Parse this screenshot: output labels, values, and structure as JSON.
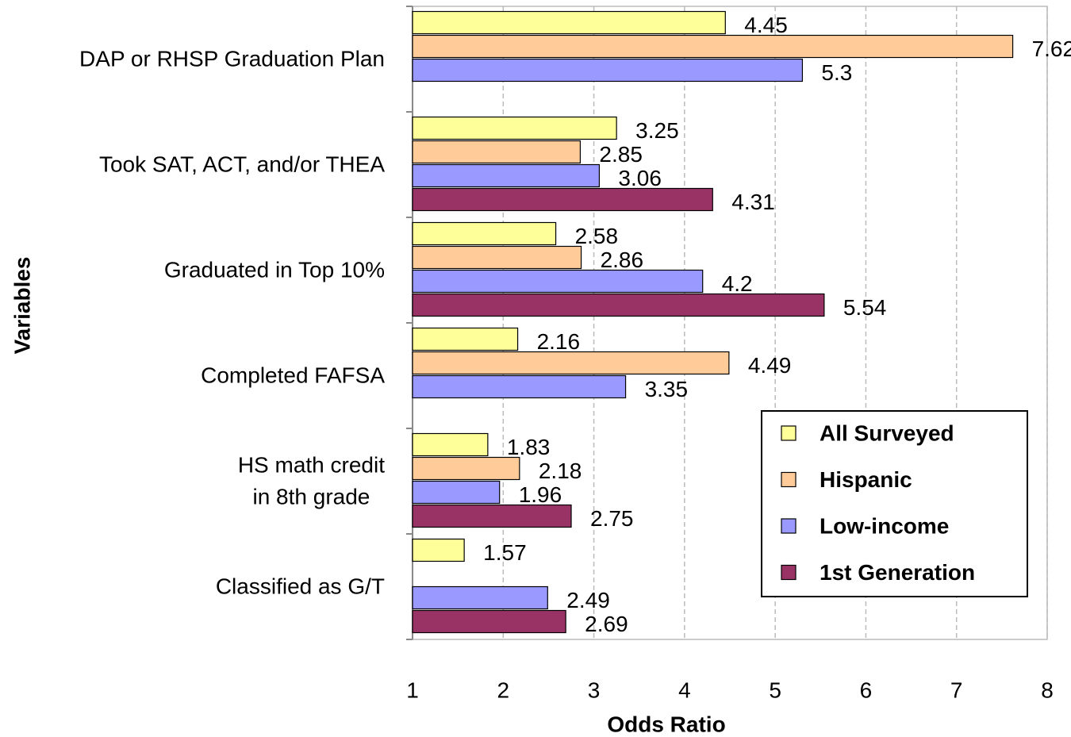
{
  "chart_data": {
    "type": "bar",
    "orientation": "horizontal",
    "xlabel": "Odds Ratio",
    "ylabel": "Variables",
    "categories": [
      "DAP or RHSP Graduation Plan",
      "Took SAT, ACT, and/or THEA",
      "Graduated in Top 10%",
      "Completed FAFSA",
      "HS math credit\nin 8th grade",
      "Classified as G/T"
    ],
    "series": [
      {
        "name": "All Surveyed",
        "color": "#ffff99",
        "values": [
          4.45,
          3.25,
          2.58,
          2.16,
          1.83,
          1.57
        ]
      },
      {
        "name": "Hispanic",
        "color": "#ffcc99",
        "values": [
          7.62,
          2.85,
          2.86,
          4.49,
          2.18,
          null
        ]
      },
      {
        "name": "Low-income",
        "color": "#9999ff",
        "values": [
          5.3,
          3.06,
          4.2,
          3.35,
          1.96,
          2.49
        ]
      },
      {
        "name": "1st Generation",
        "color": "#993366",
        "values": [
          null,
          4.31,
          5.54,
          null,
          2.75,
          2.69
        ]
      }
    ],
    "xlim": [
      1,
      8
    ],
    "xticks": [
      1,
      2,
      3,
      4,
      5,
      6,
      7,
      8
    ],
    "grid": true,
    "legend": "lower right"
  }
}
